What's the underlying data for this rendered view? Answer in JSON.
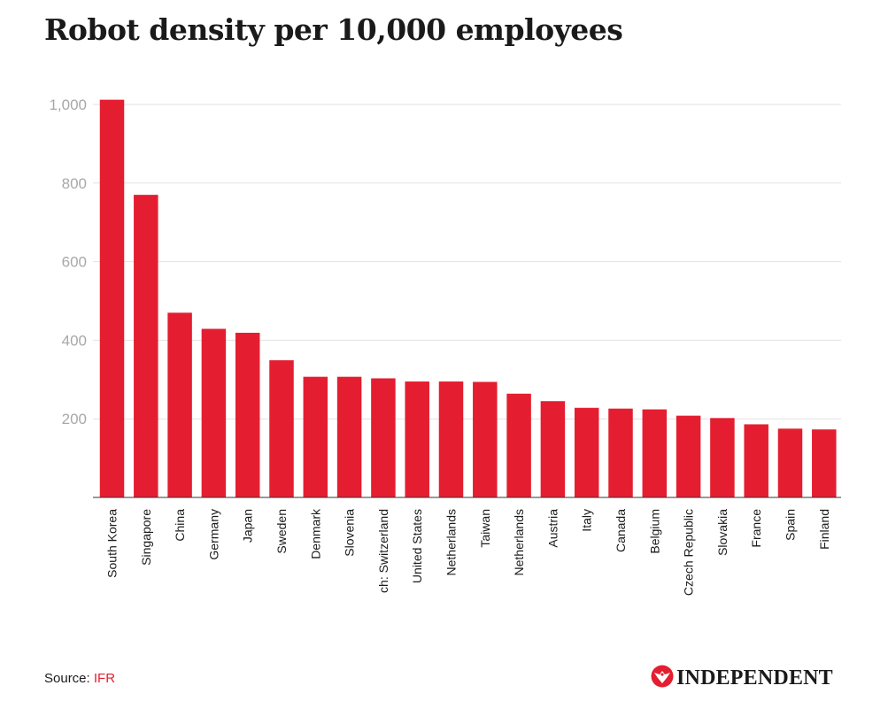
{
  "title": "Robot density per 10,000 employees",
  "source": {
    "label": "Source:",
    "link_text": "IFR"
  },
  "brand": {
    "name": "INDEPENDENT",
    "logo_icon": "eagle-icon"
  },
  "colors": {
    "bar": "#e41e30",
    "grid": "#e2e2e2",
    "axis": "#333333",
    "tick_text": "#a8a8a8",
    "label_text": "#1a1a1a"
  },
  "chart_data": {
    "type": "bar",
    "orientation": "vertical",
    "categories": [
      "South Korea",
      "Singapore",
      "China",
      "Germany",
      "Japan",
      "Sweden",
      "Denmark",
      "Slovenia",
      "ch: Switzerland",
      "United States",
      "Netherlands",
      "Taiwan",
      "Netherlands",
      "Austria",
      "Italy",
      "Canada",
      "Belgium",
      "Czech Republic",
      "Slovakia",
      "France",
      "Spain",
      "Finland"
    ],
    "values": [
      1012,
      770,
      470,
      429,
      419,
      349,
      307,
      307,
      303,
      295,
      295,
      294,
      264,
      245,
      228,
      226,
      224,
      208,
      202,
      186,
      175,
      173
    ],
    "yticks": [
      200,
      400,
      600,
      800,
      1000
    ],
    "ytick_labels": [
      "200",
      "400",
      "600",
      "800",
      "1,000"
    ],
    "ylim": [
      0,
      1000
    ],
    "grid": true,
    "legend": "none"
  }
}
